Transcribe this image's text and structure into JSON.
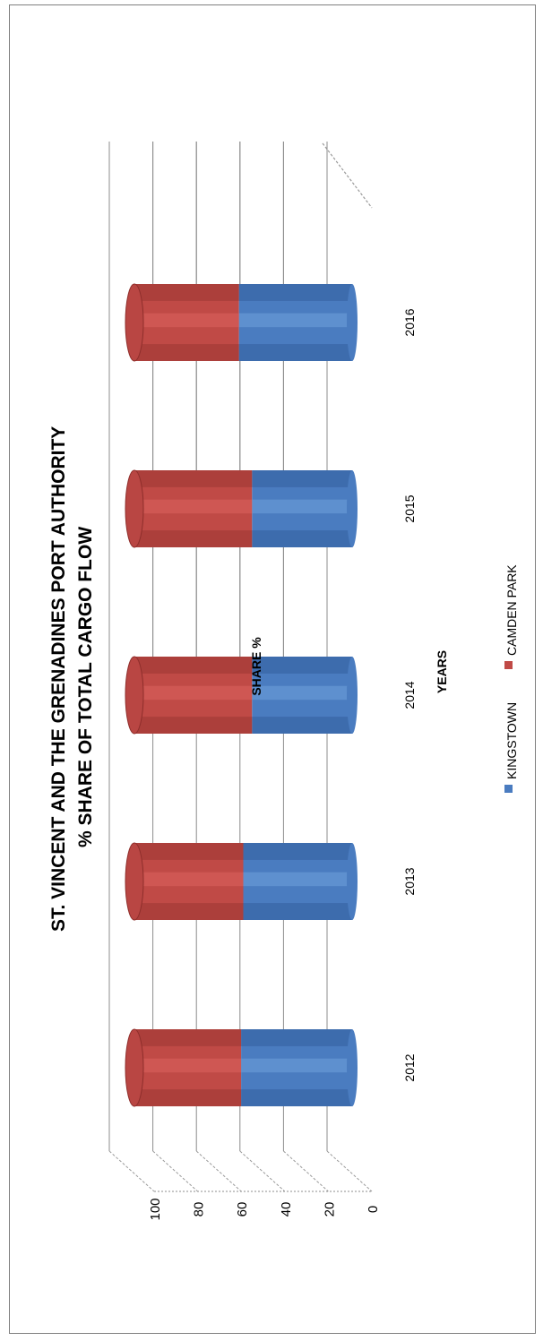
{
  "chart_data": {
    "type": "bar",
    "orientation": "horizontal-3d-cylinder-stacked-100",
    "title": "ST. VINCENT AND THE GRENADINES PORT AUTHORITY",
    "subtitle": "% SHARE OF TOTAL CARGO FLOW",
    "xlabel": "YEARS",
    "ylabel": "SHARE %",
    "categories": [
      "2012",
      "2013",
      "2014",
      "2015",
      "2016"
    ],
    "series": [
      {
        "name": "KINGSTOWN",
        "color": "#4a7cc0",
        "values": [
          51,
          50,
          46,
          46,
          52
        ]
      },
      {
        "name": "CAMDEN PARK",
        "color": "#c04a46",
        "values": [
          49,
          50,
          54,
          54,
          48
        ]
      }
    ],
    "ylim": [
      0,
      100
    ],
    "yticks": [
      "0",
      "20",
      "40",
      "60",
      "80",
      "100"
    ],
    "grid": true,
    "legend_position": "bottom"
  }
}
